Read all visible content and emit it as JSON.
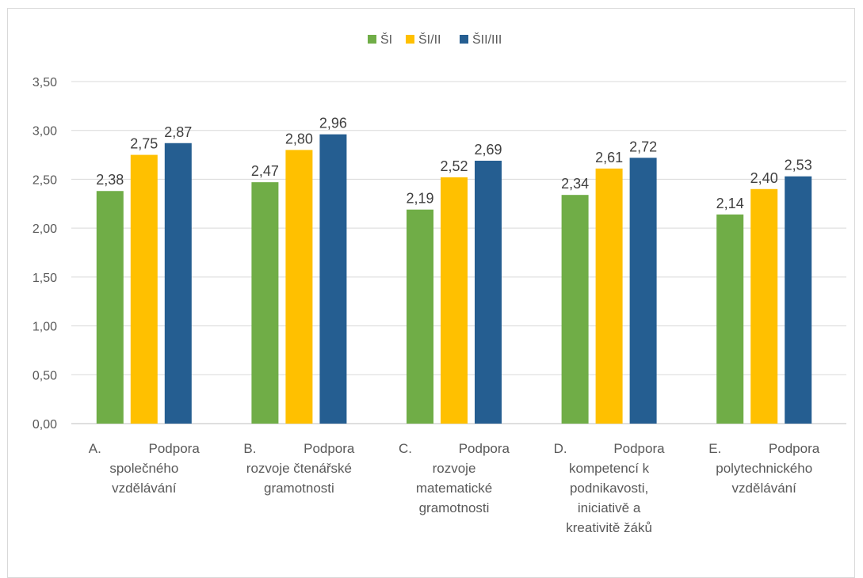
{
  "chart_data": {
    "type": "bar",
    "title": "",
    "xlabel": "",
    "ylabel": "",
    "ylim": [
      0,
      3.5
    ],
    "yticks": [
      "0,00",
      "0,50",
      "1,00",
      "1,50",
      "2,00",
      "2,50",
      "3,00",
      "3,50"
    ],
    "grid": true,
    "legend_position": "top",
    "categories": [
      [
        "A.",
        "Podpora",
        "společného",
        "vzdělávání"
      ],
      [
        "B.",
        "Podpora",
        "rozvoje čtenářské",
        "gramotnosti"
      ],
      [
        "C.",
        "Podpora",
        "rozvoje",
        "matematické",
        "gramotnosti"
      ],
      [
        "D.",
        "Podpora",
        "kompetencí k",
        "podnikavosti,",
        "iniciativě a",
        "kreativitě žáků"
      ],
      [
        "E.",
        "Podpora",
        "polytechnického",
        "vzdělávání"
      ]
    ],
    "series": [
      {
        "name": "ŠI",
        "color": "#70ad47",
        "values": [
          2.38,
          2.47,
          2.19,
          2.34,
          2.14
        ],
        "labels": [
          "2,38",
          "2,47",
          "2,19",
          "2,34",
          "2,14"
        ]
      },
      {
        "name": "ŠI/II",
        "color": "#ffc000",
        "values": [
          2.75,
          2.8,
          2.52,
          2.61,
          2.4
        ],
        "labels": [
          "2,75",
          "2,80",
          "2,52",
          "2,61",
          "2,40"
        ]
      },
      {
        "name": "ŠII/III",
        "color": "#255e91",
        "values": [
          2.87,
          2.96,
          2.69,
          2.72,
          2.53
        ],
        "labels": [
          "2,87",
          "2,96",
          "2,69",
          "2,72",
          "2,53"
        ]
      }
    ]
  }
}
